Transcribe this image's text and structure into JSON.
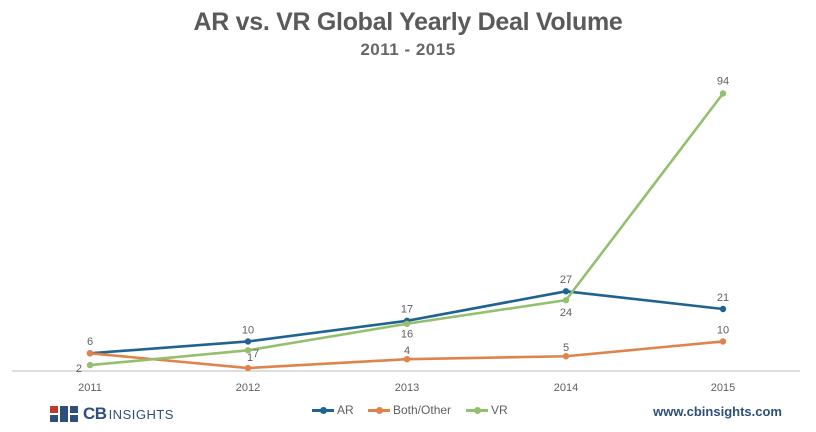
{
  "chart_data": {
    "type": "line",
    "title": "AR vs. VR Global Yearly Deal Volume",
    "subtitle": "2011 - 2015",
    "categories": [
      "2011",
      "2012",
      "2013",
      "2014",
      "2015"
    ],
    "series": [
      {
        "name": "AR",
        "values": [
          6,
          10,
          17,
          27,
          21
        ],
        "color": "#1f6390"
      },
      {
        "name": "Both/Other",
        "values": [
          6,
          1,
          4,
          5,
          10
        ],
        "color": "#e0834a"
      },
      {
        "name": "VR",
        "values": [
          2,
          7,
          16,
          24,
          94
        ],
        "color": "#93bf6e"
      }
    ],
    "ylim": [
      0,
      100
    ],
    "xlabel": "",
    "ylabel": "",
    "grid": false,
    "legend_position": "bottom-center"
  },
  "footer": {
    "logo_text_bold": "CB",
    "logo_text": "INSIGHTS",
    "website": "www.cbinsights.com"
  },
  "icons": {
    "logo": "cb-insights-logo-icon"
  }
}
